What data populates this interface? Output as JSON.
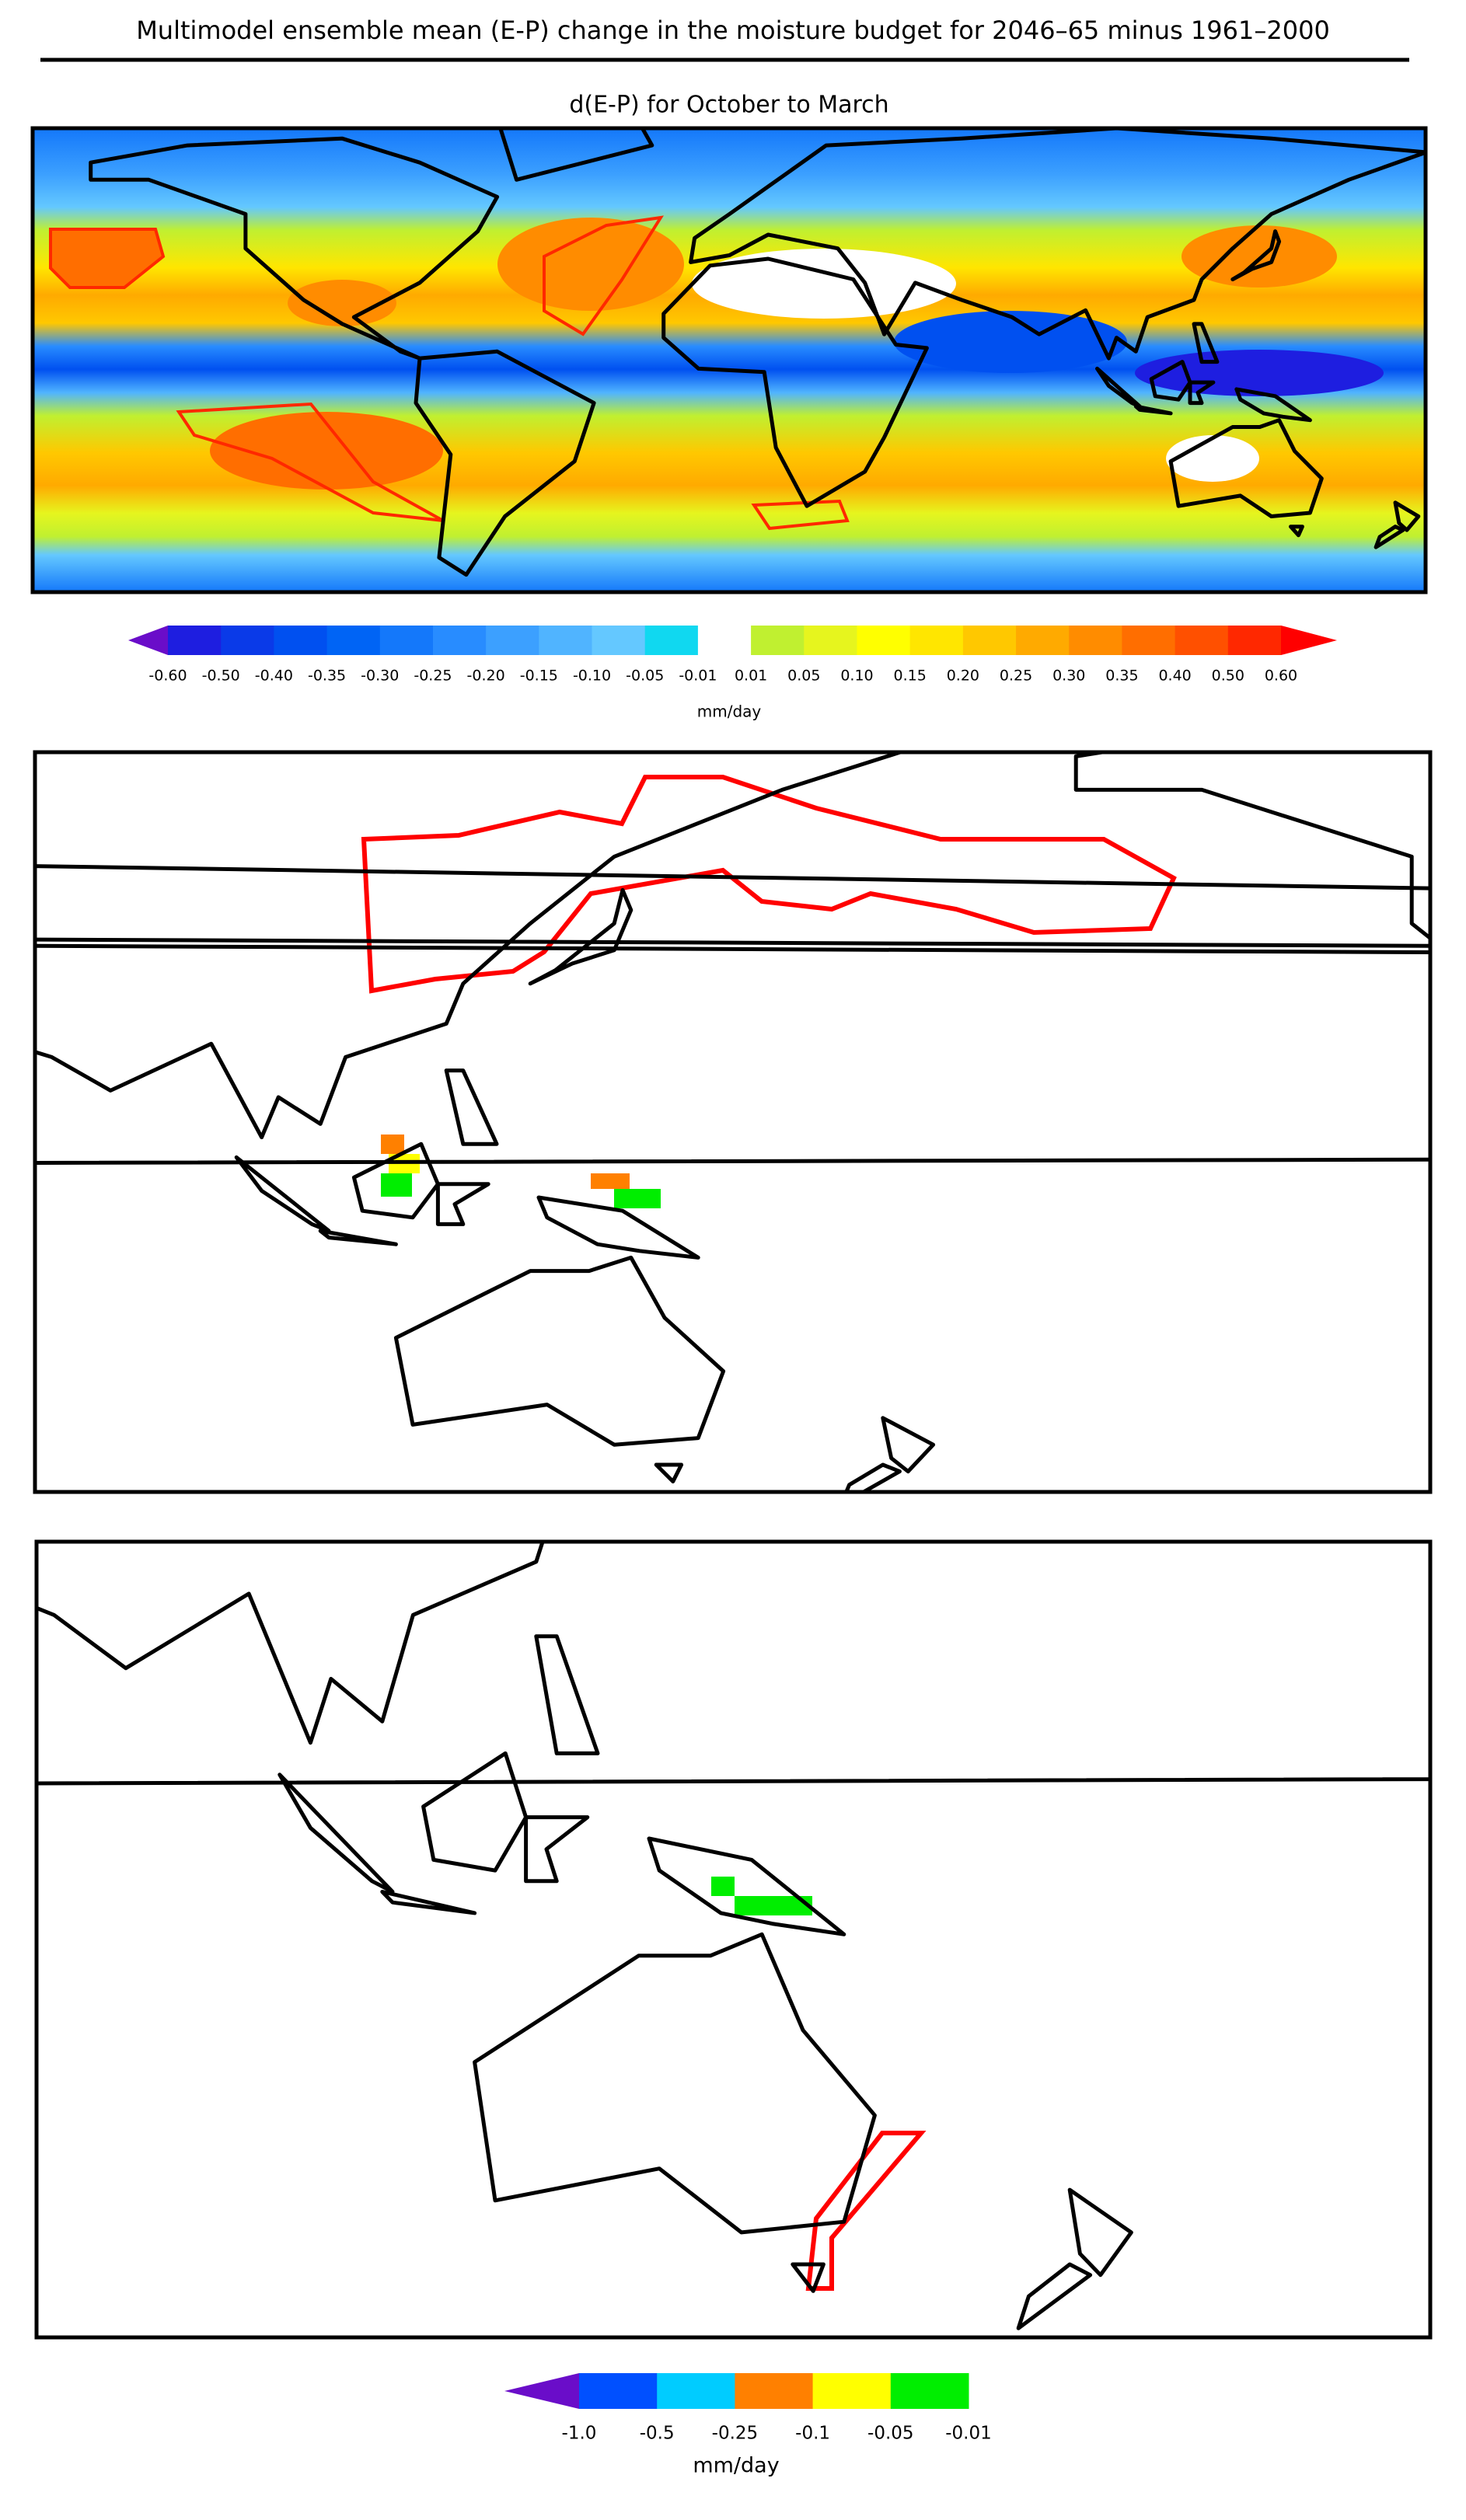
{
  "header": {
    "title": "Multimodel ensemble mean (E-P) change in the moisture budget for 2046–65 minus 1961–2000"
  },
  "panels": [
    {
      "subtitle": "d(E-P) for October to March"
    }
  ],
  "colorbars": [
    {
      "labels": [
        "-0.60",
        "-0.50",
        "-0.40",
        "-0.35",
        "-0.30",
        "-0.25",
        "-0.20",
        "-0.15",
        "-0.10",
        "-0.05",
        "-0.01",
        "0.01",
        "0.05",
        "0.10",
        "0.15",
        "0.20",
        "0.25",
        "0.30",
        "0.35",
        "0.40",
        "0.50",
        "0.60"
      ],
      "colors": [
        "#1e1ee0",
        "#0a3ae8",
        "#0050f0",
        "#0064f5",
        "#1478fa",
        "#288cff",
        "#3ca0ff",
        "#50b4ff",
        "#64c8ff",
        "#10d8f0",
        "#ffffff",
        "#c0f030",
        "#e6f51e",
        "#ffff00",
        "#ffe600",
        "#ffc800",
        "#ffaa00",
        "#ff8c00",
        "#ff6e00",
        "#ff5000",
        "#ff2800"
      ],
      "under": "#6a0dc9",
      "over": "#ff0000",
      "units": "mm/day"
    },
    {
      "labels": [
        "-1.0",
        "-0.5",
        "-0.25",
        "-0.1",
        "-0.05",
        "-0.01"
      ],
      "colors": [
        "#0050ff",
        "#00ccff",
        "#ff8000",
        "#ffff00",
        "#00ee00"
      ],
      "under": "#6a0dc9",
      "units": "mm/day"
    }
  ]
}
